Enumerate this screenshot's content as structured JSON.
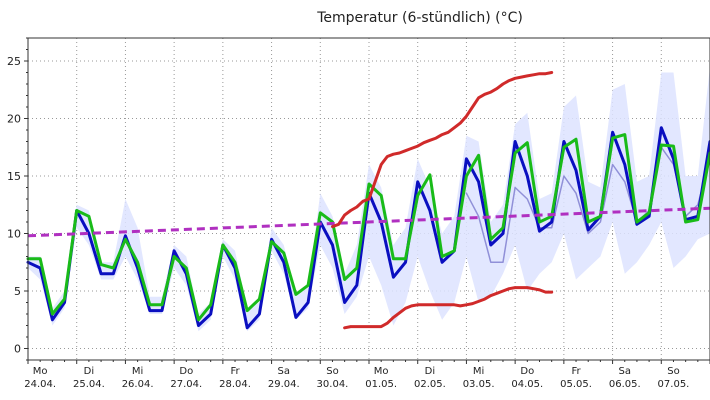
{
  "chart_data": {
    "type": "line",
    "title": "Temperatur (6-stündlich) (°C)",
    "xlabel": "",
    "ylabel": "",
    "ylim": [
      -1,
      27
    ],
    "y_ticks": [
      0,
      5,
      10,
      15,
      20,
      25
    ],
    "x_unit": "6h steps from Mo 24.04. 00:00",
    "xlim": [
      0,
      56
    ],
    "x_ticks": [
      {
        "day": "Mo",
        "date": "24.04."
      },
      {
        "day": "Di",
        "date": "25.04."
      },
      {
        "day": "Mi",
        "date": "26.04."
      },
      {
        "day": "Do",
        "date": "27.04."
      },
      {
        "day": "Fr",
        "date": "28.04."
      },
      {
        "day": "Sa",
        "date": "29.04."
      },
      {
        "day": "So",
        "date": "30.04."
      },
      {
        "day": "Mo",
        "date": "01.05."
      },
      {
        "day": "Di",
        "date": "02.05."
      },
      {
        "day": "Mi",
        "date": "03.05."
      },
      {
        "day": "Do",
        "date": "04.05."
      },
      {
        "day": "Fr",
        "date": "05.05."
      },
      {
        "day": "Sa",
        "date": "06.05."
      },
      {
        "day": "So",
        "date": "07.05."
      }
    ],
    "grid": true,
    "series": [
      {
        "name": "",
        "role": "spread-band",
        "color": "#dde3ff",
        "lower": [
          7.0,
          6.0,
          2.0,
          3.5,
          10.5,
          9.0,
          6.0,
          6.0,
          8.0,
          6.0,
          3.0,
          3.0,
          7.0,
          5.5,
          1.5,
          2.5,
          8.0,
          6.0,
          1.5,
          2.5,
          8.5,
          6.5,
          2.5,
          3.5,
          9.0,
          7.0,
          3.0,
          4.5,
          8.0,
          5.5,
          2.0,
          4.0,
          8.0,
          5.0,
          2.5,
          4.0,
          8.0,
          4.0,
          4.5,
          6.5,
          9.0,
          5.0,
          6.5,
          7.5,
          10.0,
          6.0,
          7.0,
          8.0,
          11.0,
          6.5,
          7.5,
          9.0,
          11.0,
          7.0,
          8.0,
          9.5,
          10.0
        ],
        "upper": [
          8.0,
          8.0,
          3.5,
          5.0,
          12.5,
          12.0,
          7.5,
          7.5,
          13.0,
          10.5,
          4.5,
          4.5,
          9.0,
          8.0,
          3.0,
          4.0,
          9.5,
          8.5,
          3.5,
          4.0,
          10.5,
          9.0,
          4.5,
          5.5,
          13.5,
          11.5,
          6.5,
          9.0,
          16.0,
          14.0,
          9.0,
          10.5,
          16.5,
          14.0,
          10.0,
          11.5,
          18.5,
          18.0,
          11.0,
          12.5,
          19.5,
          20.5,
          13.0,
          13.5,
          21.0,
          22.0,
          14.5,
          14.0,
          22.5,
          23.0,
          14.5,
          15.0,
          24.0,
          24.0,
          15.0,
          15.0,
          24.5
        ]
      },
      {
        "name": "",
        "role": "secondary",
        "color": "#9090d8",
        "values": [
          null,
          null,
          null,
          null,
          null,
          null,
          null,
          null,
          null,
          null,
          null,
          null,
          null,
          null,
          null,
          null,
          null,
          null,
          null,
          null,
          null,
          null,
          null,
          null,
          null,
          null,
          null,
          null,
          null,
          null,
          null,
          null,
          null,
          null,
          null,
          null,
          13.5,
          11.5,
          7.5,
          7.5,
          14.0,
          13.0,
          10.5,
          10.5,
          15.0,
          13.5,
          10.0,
          11.0,
          16.0,
          14.5,
          11.0,
          12.0,
          17.5,
          16.0,
          11.5,
          12.5,
          16.5
        ]
      },
      {
        "name": "",
        "role": "main",
        "color": "#0a0fc0",
        "values": [
          7.5,
          7.0,
          2.5,
          4.0,
          12.0,
          10.0,
          6.5,
          6.5,
          9.8,
          7.0,
          3.3,
          3.3,
          8.5,
          6.5,
          2.0,
          3.0,
          9.0,
          7.0,
          1.8,
          3.0,
          9.5,
          7.5,
          2.7,
          4.0,
          11.0,
          9.0,
          4.0,
          5.5,
          13.5,
          11.0,
          6.2,
          7.5,
          14.5,
          12.0,
          7.5,
          8.5,
          16.5,
          14.5,
          9.0,
          10.0,
          18.0,
          15.0,
          10.2,
          11.0,
          18.0,
          15.5,
          10.3,
          11.5,
          18.8,
          16.0,
          10.8,
          11.5,
          19.2,
          16.5,
          11.2,
          11.5,
          18.0
        ]
      },
      {
        "name": "",
        "role": "main-alt",
        "color": "#19bb19",
        "values": [
          7.8,
          7.8,
          3.0,
          4.3,
          12.0,
          11.5,
          7.3,
          7.0,
          9.5,
          7.5,
          3.8,
          3.8,
          8.0,
          7.0,
          2.5,
          3.8,
          9.0,
          7.5,
          3.3,
          4.3,
          9.3,
          8.3,
          4.7,
          5.5,
          11.8,
          11.0,
          6.0,
          7.0,
          14.3,
          13.3,
          7.8,
          7.8,
          13.3,
          15.1,
          8.0,
          8.5,
          15.0,
          16.8,
          9.5,
          10.5,
          17.0,
          17.9,
          11.0,
          11.5,
          17.5,
          18.2,
          11.0,
          11.5,
          18.3,
          18.6,
          11.0,
          11.8,
          17.7,
          17.6,
          11.0,
          11.2,
          17.0
        ]
      },
      {
        "name": "",
        "role": "climate-mean",
        "color": "#b030c0",
        "dashed": true,
        "x": [
          0,
          56
        ],
        "values": [
          9.8,
          12.2
        ]
      },
      {
        "name": "",
        "role": "record-high",
        "color": "#d02a2a",
        "x": [
          25,
          25.5,
          26,
          26.5,
          27,
          27.5,
          28,
          28.5,
          29,
          29.5,
          30,
          30.5,
          31,
          31.5,
          32,
          32.5,
          33,
          33.5,
          34,
          34.5,
          35,
          35.5,
          36,
          36.5,
          37,
          37.5,
          38,
          38.5,
          39,
          39.5,
          40,
          40.5,
          41,
          41.5,
          42,
          42.5,
          43
        ],
        "values": [
          10.6,
          10.8,
          11.6,
          12.0,
          12.3,
          12.8,
          13.0,
          14.5,
          16.0,
          16.7,
          16.9,
          17.0,
          17.2,
          17.4,
          17.6,
          17.9,
          18.1,
          18.3,
          18.6,
          18.8,
          19.2,
          19.6,
          20.2,
          21.0,
          21.8,
          22.1,
          22.3,
          22.6,
          23.0,
          23.3,
          23.5,
          23.6,
          23.7,
          23.8,
          23.9,
          23.9,
          24.0
        ]
      },
      {
        "name": "",
        "role": "record-low",
        "color": "#d02a2a",
        "x": [
          26,
          26.5,
          27,
          27.5,
          28,
          28.5,
          29,
          29.5,
          30,
          30.5,
          31,
          31.5,
          32,
          32.5,
          33,
          33.5,
          34,
          34.5,
          35,
          35.5,
          36,
          36.5,
          37,
          37.5,
          38,
          38.5,
          39,
          39.5,
          40,
          40.5,
          41,
          41.5,
          42,
          42.5,
          43
        ],
        "values": [
          1.8,
          1.9,
          1.9,
          1.9,
          1.9,
          1.9,
          1.9,
          2.2,
          2.7,
          3.1,
          3.5,
          3.7,
          3.8,
          3.8,
          3.8,
          3.8,
          3.8,
          3.8,
          3.8,
          3.7,
          3.8,
          3.9,
          4.1,
          4.3,
          4.6,
          4.8,
          5.0,
          5.2,
          5.3,
          5.3,
          5.3,
          5.2,
          5.1,
          4.9,
          4.9
        ]
      }
    ]
  }
}
